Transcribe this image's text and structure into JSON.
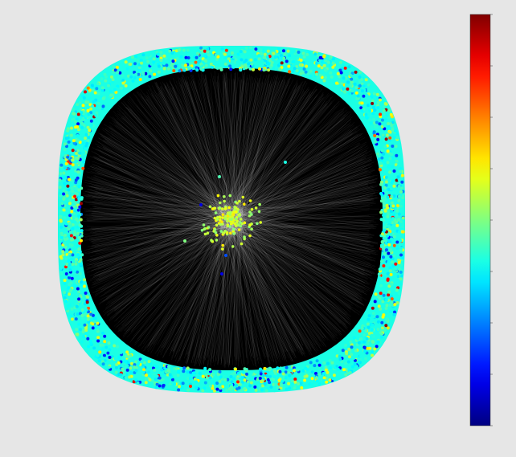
{
  "colorbar": {
    "colormap": "jet"
  }
}
